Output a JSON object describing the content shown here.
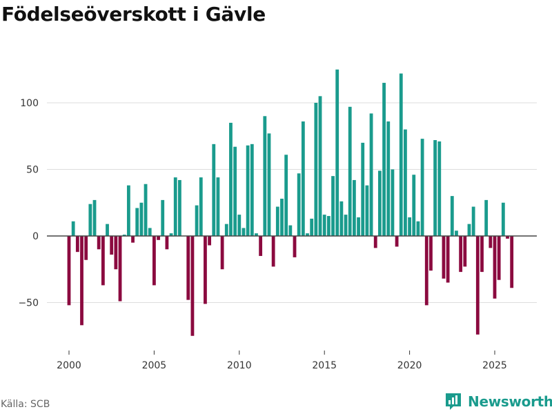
{
  "title": "Födelseöverskott i Gävle",
  "source": "Källa: SCB",
  "brand": {
    "name": "Newsworthy",
    "icon": "newsworthy-logo-icon"
  },
  "colors": {
    "positive": "#1a9b8d",
    "negative": "#8b0a3f",
    "grid": "#dddddd",
    "zero": "#444444"
  },
  "chart_data": {
    "type": "bar",
    "title": "Födelseöverskott i Gävle",
    "xlabel": "",
    "ylabel": "",
    "ylim": [
      -85,
      125
    ],
    "xlim": [
      1999.2,
      2027
    ],
    "y_ticks": [
      {
        "value": 100,
        "label": "100"
      },
      {
        "value": 50,
        "label": "50"
      },
      {
        "value": 0,
        "label": "0"
      },
      {
        "value": -50,
        "label": "−50"
      }
    ],
    "x_ticks": [
      {
        "value": 2000,
        "label": "2000"
      },
      {
        "value": 2005,
        "label": "2005"
      },
      {
        "value": 2010,
        "label": "2010"
      },
      {
        "value": 2015,
        "label": "2015"
      },
      {
        "value": 2020,
        "label": "2020"
      },
      {
        "value": 2025,
        "label": "2025"
      }
    ],
    "grid": true,
    "start_year": 2000,
    "periods_per_year": 4,
    "values": [
      -52,
      11,
      -12,
      -67,
      -18,
      24,
      27,
      -10,
      -37,
      9,
      -14,
      -25,
      -49,
      1,
      38,
      -5,
      21,
      25,
      39,
      6,
      -37,
      -3,
      27,
      -10,
      2,
      44,
      42,
      0,
      -48,
      -75,
      23,
      44,
      -51,
      -7,
      69,
      44,
      -25,
      9,
      85,
      67,
      16,
      6,
      68,
      69,
      2,
      -15,
      90,
      77,
      -23,
      22,
      28,
      61,
      8,
      -16,
      47,
      86,
      2,
      13,
      100,
      105,
      16,
      15,
      45,
      125,
      26,
      16,
      97,
      42,
      14,
      70,
      38,
      92,
      -9,
      49,
      115,
      86,
      50,
      -8,
      122,
      80,
      14,
      46,
      11,
      73,
      -52,
      -26,
      72,
      71,
      -32,
      -35,
      30,
      4,
      -27,
      -23,
      9,
      22,
      -74,
      -27,
      27,
      -9,
      -47,
      -33,
      25,
      -2,
      -39
    ]
  }
}
